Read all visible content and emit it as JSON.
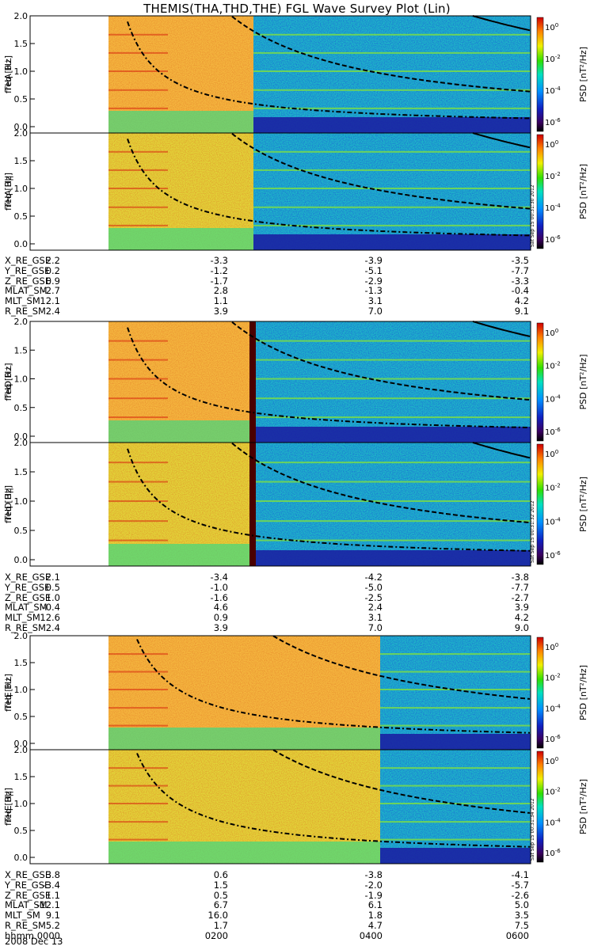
{
  "title": "THEMIS(THA,THD,THE) FGL Wave Survey Plot (Lin)",
  "colorbar": {
    "label": "PSD [nT²/Hz]",
    "exponents": [
      "0",
      "-2",
      "-4",
      "-6"
    ],
    "base": "10"
  },
  "freq_axis": {
    "label": "freq [Hz]",
    "ticks": [
      "0.0",
      "0.5",
      "1.0",
      "1.5",
      "2.0"
    ]
  },
  "time_axis": {
    "ticks": [
      "0000",
      "0200",
      "0400",
      "0600"
    ],
    "date": "2008 Dec 13",
    "hhmm_label": "hhmm"
  },
  "stamps": [
    "Sat Sep 15 00:31:30 2012",
    "Sat Sep 15 00:31:32 2012",
    "Sat Sep 15 00:31:34 2012"
  ],
  "probes": [
    {
      "perp_label": "THA B⊥",
      "para_label": "THA B||",
      "ephemeris": [
        {
          "label": "X_RE_GSE",
          "values": [
            "2.2",
            "-3.3",
            "-3.9",
            "-3.5"
          ]
        },
        {
          "label": "Y_RE_GSE",
          "values": [
            "0.2",
            "-1.2",
            "-5.1",
            "-7.7"
          ]
        },
        {
          "label": "Z_RE_GSE",
          "values": [
            "0.9",
            "-1.7",
            "-2.9",
            "-3.3"
          ]
        },
        {
          "label": "MLAT_SM",
          "values": [
            "-2.7",
            "2.8",
            "-1.3",
            "-0.4"
          ]
        },
        {
          "label": "MLT_SM",
          "values": [
            "12.1",
            "1.1",
            "3.1",
            "4.2"
          ]
        },
        {
          "label": "R_RE_SM",
          "values": [
            "2.4",
            "3.9",
            "7.0",
            "9.1"
          ]
        }
      ]
    },
    {
      "perp_label": "THD B⊥",
      "para_label": "THD B||",
      "ephemeris": [
        {
          "label": "X_RE_GSE",
          "values": [
            "2.1",
            "-3.4",
            "-4.2",
            "-3.8"
          ]
        },
        {
          "label": "Y_RE_GSE",
          "values": [
            "0.5",
            "-1.0",
            "-5.0",
            "-7.7"
          ]
        },
        {
          "label": "Z_RE_GSE",
          "values": [
            "1.0",
            "-1.6",
            "-2.5",
            "-2.7"
          ]
        },
        {
          "label": "MLAT_SM",
          "values": [
            "-0.4",
            "4.6",
            "2.4",
            "3.9"
          ]
        },
        {
          "label": "MLT_SM",
          "values": [
            "12.6",
            "0.9",
            "3.1",
            "4.2"
          ]
        },
        {
          "label": "R_RE_SM",
          "values": [
            "2.4",
            "3.9",
            "7.0",
            "9.0"
          ]
        }
      ]
    },
    {
      "perp_label": "THE B⊥",
      "para_label": "THE B||",
      "ephemeris": [
        {
          "label": "X_RE_GSE",
          "values": [
            "3.8",
            "0.6",
            "-3.8",
            "-4.1"
          ]
        },
        {
          "label": "Y_RE_GSE",
          "values": [
            "-3.4",
            "1.5",
            "-2.0",
            "-5.7"
          ]
        },
        {
          "label": "Z_RE_GSE",
          "values": [
            "1.1",
            "0.5",
            "-1.9",
            "-2.6"
          ]
        },
        {
          "label": "MLAT_SM",
          "values": [
            "-12.1",
            "6.7",
            "6.1",
            "5.0"
          ]
        },
        {
          "label": "MLT_SM",
          "values": [
            "9.1",
            "16.0",
            "1.8",
            "3.5"
          ]
        },
        {
          "label": "R_RE_SM",
          "values": [
            "5.2",
            "1.7",
            "4.7",
            "7.5"
          ]
        }
      ]
    }
  ],
  "chart_data": {
    "type": "heatmap",
    "title": "THEMIS(THA,THD,THE) FGL Wave Survey Plot (Lin)",
    "xlabel": "hhmm",
    "ylabel": "freq [Hz]",
    "ylim": [
      0,
      2.0
    ],
    "xticks": [
      "0000",
      "0200",
      "0400",
      "0600"
    ],
    "color_scale": "log",
    "color_label": "PSD [nT²/Hz]",
    "color_ticks": [
      "10^0",
      "10^-2",
      "10^-4",
      "10^-6"
    ]
  }
}
